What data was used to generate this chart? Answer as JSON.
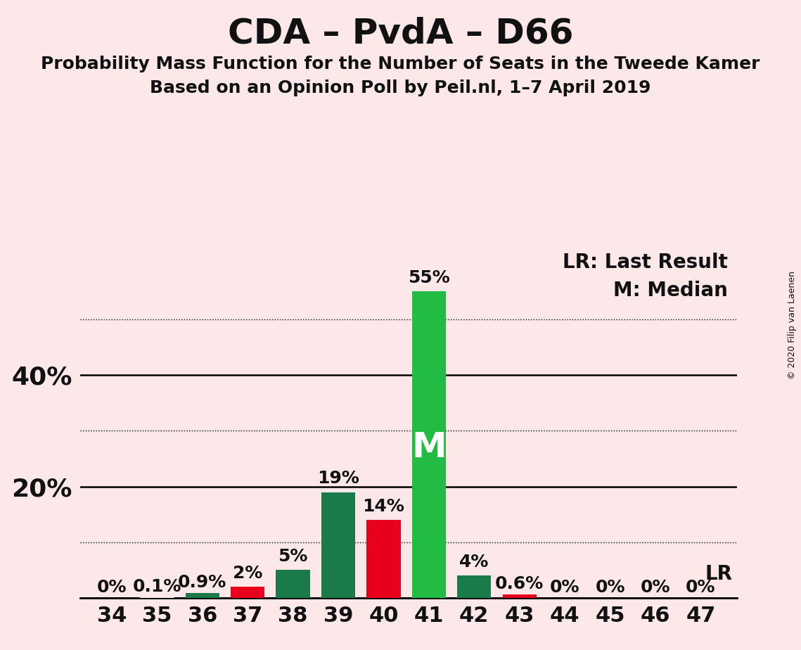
{
  "title": "CDA – PvdA – D66",
  "subtitle1": "Probability Mass Function for the Number of Seats in the Tweede Kamer",
  "subtitle2": "Based on an Opinion Poll by Peil.nl, 1–7 April 2019",
  "copyright": "© 2020 Filip van Laenen",
  "background_color": "#fce8e8",
  "seats": [
    34,
    35,
    36,
    37,
    38,
    39,
    40,
    41,
    42,
    43,
    44,
    45,
    46,
    47
  ],
  "pmf_values": [
    0.0,
    0.1,
    0.9,
    2.0,
    5.0,
    19.0,
    14.0,
    55.0,
    4.0,
    0.6,
    0.0,
    0.0,
    0.0,
    0.0
  ],
  "pmf_labels": [
    "0%",
    "0.1%",
    "0.9%",
    "2%",
    "5%",
    "19%",
    "14%",
    "55%",
    "4%",
    "0.6%",
    "0%",
    "0%",
    "0%",
    "0%"
  ],
  "bar_colors": {
    "34": null,
    "35": null,
    "36": "#1a7a4a",
    "37": "#e8001c",
    "38": "#1a7a4a",
    "39": "#1a7a4a",
    "40": "#e8001c",
    "41": "#22bb44",
    "42": "#1a7a4a",
    "43": "#e8001c",
    "44": null,
    "45": null,
    "46": null,
    "47": null
  },
  "median_seat": 41,
  "median_label": "M",
  "legend_lr": "LR: Last Result",
  "legend_m": "M: Median",
  "lr_label": "LR",
  "ylim": [
    0,
    63
  ],
  "solid_yticks": [
    0,
    20,
    40
  ],
  "dotted_yticks": [
    10,
    30,
    50
  ],
  "title_fontsize": 36,
  "subtitle_fontsize": 18,
  "bar_label_fontsize": 18,
  "tick_fontsize": 22,
  "legend_fontsize": 20,
  "median_fontsize": 36,
  "ytick_label_fontsize": 26,
  "text_color": "#111111"
}
